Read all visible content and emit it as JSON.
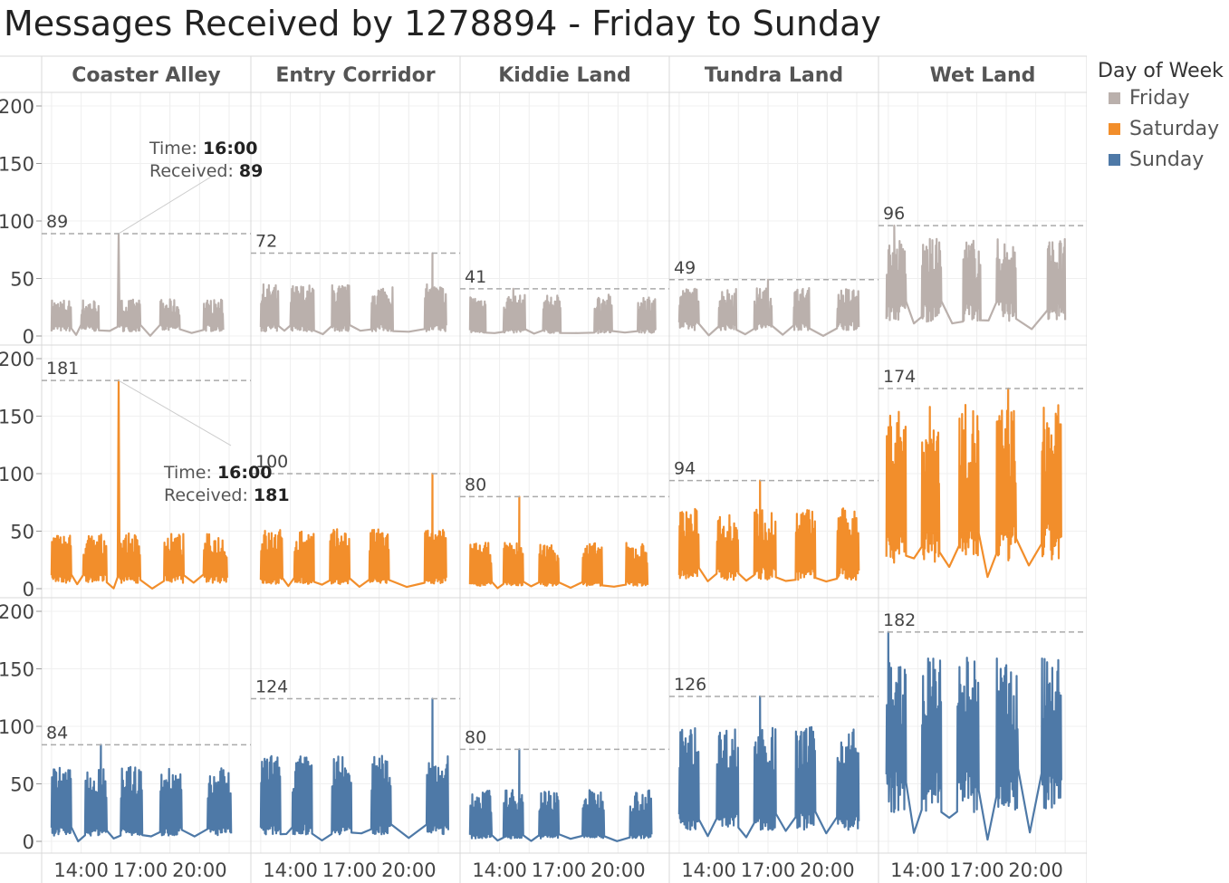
{
  "title": "Messages Received by 1278894 - Friday to Sunday",
  "chart_data": {
    "type": "line",
    "title": "Messages Received by 1278894 - Friday to Sunday",
    "columns": [
      "Coaster Alley",
      "Entry Corridor",
      "Kiddie Land",
      "Tundra Land",
      "Wet Land"
    ],
    "rows": [
      "Friday",
      "Saturday",
      "Sunday"
    ],
    "x_ticks": [
      "14:00",
      "17:00",
      "20:00"
    ],
    "y_ticks": [
      "0",
      "50",
      "100",
      "150",
      "200"
    ],
    "ylim": [
      0,
      200
    ],
    "xlim": [
      12,
      22.6
    ],
    "legend": {
      "title": "Day of Week",
      "placement": "right",
      "items": [
        {
          "label": "Friday",
          "color": "#BAB0AC"
        },
        {
          "label": "Saturday",
          "color": "#F28E2B"
        },
        {
          "label": "Sunday",
          "color": "#4E79A7"
        }
      ]
    },
    "max_labels": [
      [
        "89",
        "72",
        "41",
        "49",
        "96"
      ],
      [
        "181",
        "100",
        "80",
        "94",
        "174"
      ],
      [
        "84",
        "124",
        "80",
        "126",
        "182"
      ]
    ],
    "max_values": [
      [
        89,
        72,
        41,
        49,
        96
      ],
      [
        181,
        100,
        80,
        94,
        174
      ],
      [
        84,
        124,
        80,
        126,
        182
      ]
    ],
    "bursts": [
      [
        {
          "ranges": [
            [
              12.5,
              13.5
            ],
            [
              14.0,
              14.9
            ],
            [
              16.0,
              17.0
            ],
            [
              18.0,
              19.0
            ],
            [
              20.2,
              21.2
            ]
          ],
          "low": 8,
          "high": 32,
          "spike": [
            15.9,
            89
          ]
        },
        {
          "ranges": [
            [
              12.5,
              13.4
            ],
            [
              14.0,
              15.2
            ],
            [
              16.1,
              17.0
            ],
            [
              18.1,
              19.2
            ],
            [
              20.8,
              21.9
            ]
          ],
          "low": 8,
          "high": 45,
          "spike": [
            21.2,
            72
          ]
        },
        {
          "ranges": [
            [
              12.5,
              13.3
            ],
            [
              14.2,
              15.3
            ],
            [
              16.2,
              17.1
            ],
            [
              18.8,
              19.7
            ],
            [
              21.0,
              21.9
            ]
          ],
          "low": 5,
          "high": 36,
          "spike": [
            14.7,
            41
          ]
        },
        {
          "ranges": [
            [
              12.5,
              13.5
            ],
            [
              14.5,
              15.4
            ],
            [
              16.3,
              17.2
            ],
            [
              18.3,
              19.1
            ],
            [
              20.5,
              21.6
            ]
          ],
          "low": 10,
          "high": 42,
          "spike": [
            17.0,
            49
          ]
        },
        {
          "ranges": [
            [
              12.4,
              13.4
            ],
            [
              14.2,
              15.2
            ],
            [
              16.3,
              17.2
            ],
            [
              18.0,
              19.0
            ],
            [
              20.6,
              21.5
            ]
          ],
          "low": 25,
          "high": 85,
          "spike": [
            12.8,
            96
          ]
        }
      ],
      [
        {
          "ranges": [
            [
              12.5,
              13.5
            ],
            [
              14.1,
              15.3
            ],
            [
              16.0,
              17.0
            ],
            [
              18.2,
              19.2
            ],
            [
              20.2,
              21.4
            ]
          ],
          "low": 10,
          "high": 48,
          "spike": [
            15.9,
            181
          ]
        },
        {
          "ranges": [
            [
              12.5,
              13.6
            ],
            [
              14.2,
              15.2
            ],
            [
              16.0,
              17.0
            ],
            [
              18.0,
              19.0
            ],
            [
              20.8,
              21.9
            ]
          ],
          "low": 8,
          "high": 52,
          "spike": [
            21.2,
            100
          ]
        },
        {
          "ranges": [
            [
              12.5,
              13.6
            ],
            [
              14.2,
              15.2
            ],
            [
              16.0,
              17.0
            ],
            [
              18.2,
              19.2
            ],
            [
              20.4,
              21.5
            ]
          ],
          "low": 5,
          "high": 40,
          "spike": [
            15.0,
            80
          ]
        },
        {
          "ranges": [
            [
              12.5,
              13.5
            ],
            [
              14.4,
              15.5
            ],
            [
              16.3,
              17.4
            ],
            [
              18.4,
              19.4
            ],
            [
              20.5,
              21.6
            ]
          ],
          "low": 15,
          "high": 70,
          "spike": [
            16.6,
            94
          ]
        },
        {
          "ranges": [
            [
              12.4,
              13.4
            ],
            [
              14.2,
              15.1
            ],
            [
              16.1,
              17.1
            ],
            [
              18.0,
              19.0
            ],
            [
              20.3,
              21.3
            ]
          ],
          "low": 45,
          "high": 160,
          "spike": [
            18.6,
            174
          ]
        }
      ],
      [
        {
          "ranges": [
            [
              12.5,
              13.5
            ],
            [
              14.2,
              15.3
            ],
            [
              16.0,
              17.1
            ],
            [
              18.0,
              19.1
            ],
            [
              20.4,
              21.6
            ]
          ],
          "low": 10,
          "high": 65,
          "spike": [
            15.0,
            84
          ]
        },
        {
          "ranges": [
            [
              12.5,
              13.5
            ],
            [
              14.1,
              15.1
            ],
            [
              16.1,
              17.1
            ],
            [
              18.1,
              19.1
            ],
            [
              20.9,
              22.0
            ]
          ],
          "low": 12,
          "high": 75,
          "spike": [
            21.2,
            124
          ]
        },
        {
          "ranges": [
            [
              12.5,
              13.6
            ],
            [
              14.2,
              15.2
            ],
            [
              16.0,
              17.0
            ],
            [
              18.2,
              19.3
            ],
            [
              20.6,
              21.7
            ]
          ],
          "low": 5,
          "high": 45,
          "spike": [
            15.0,
            80
          ]
        },
        {
          "ranges": [
            [
              12.5,
              13.5
            ],
            [
              14.4,
              15.5
            ],
            [
              16.3,
              17.4
            ],
            [
              18.4,
              19.4
            ],
            [
              20.5,
              21.6
            ]
          ],
          "low": 20,
          "high": 100,
          "spike": [
            16.6,
            126
          ]
        },
        {
          "ranges": [
            [
              12.4,
              13.4
            ],
            [
              14.2,
              15.2
            ],
            [
              16.0,
              17.1
            ],
            [
              18.0,
              19.1
            ],
            [
              20.3,
              21.3
            ]
          ],
          "low": 50,
          "high": 160,
          "spike": [
            12.5,
            182
          ]
        }
      ]
    ],
    "tooltips": [
      {
        "day": "Friday",
        "park": "Coaster Alley",
        "time_label": "Time:",
        "time": "16:00",
        "received_label": "Received:",
        "received": "89"
      },
      {
        "day": "Saturday",
        "park": "Coaster Alley",
        "time_label": "Time:",
        "time": "16:00",
        "received_label": "Received:",
        "received": "181"
      }
    ]
  }
}
